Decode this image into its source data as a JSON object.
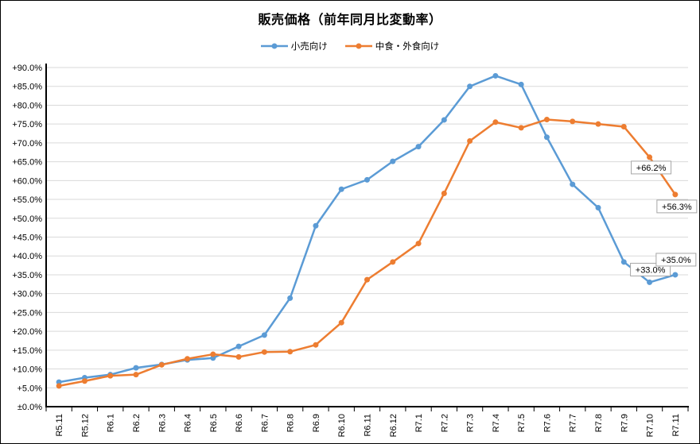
{
  "chart_data": {
    "type": "line",
    "title": "販売価格（前年同月比変動率）",
    "categories": [
      "R5.11",
      "R5.12",
      "R6.1",
      "R6.2",
      "R6.3",
      "R6.4",
      "R6.5",
      "R6.6",
      "R6.7",
      "R6.8",
      "R6.9",
      "R6.10",
      "R6.11",
      "R6.12",
      "R7.1",
      "R7.2",
      "R7.3",
      "R7.4",
      "R7.5",
      "R7.6",
      "R7.7",
      "R7.8",
      "R7.9",
      "R7.10",
      "R7.11"
    ],
    "series": [
      {
        "name": "小売向け",
        "color": "#5B9BD5",
        "values": [
          6.5,
          7.7,
          8.5,
          10.3,
          11.2,
          12.4,
          12.9,
          16.0,
          19.0,
          28.8,
          48.0,
          57.7,
          60.2,
          65.1,
          69.0,
          76.1,
          85.0,
          87.8,
          85.5,
          71.5,
          59.0,
          52.8,
          38.4,
          33.0,
          35.0
        ]
      },
      {
        "name": "中食・外食向け",
        "color": "#ED7D31",
        "values": [
          5.5,
          6.8,
          8.2,
          8.5,
          11.1,
          12.7,
          13.9,
          13.2,
          14.5,
          14.6,
          16.4,
          22.3,
          33.7,
          38.4,
          43.3,
          56.6,
          70.5,
          75.5,
          74.0,
          76.2,
          75.7,
          75.0,
          74.3,
          66.2,
          56.3
        ]
      }
    ],
    "ylim": [
      0,
      90
    ],
    "y_tick_step": 5,
    "y_tick_labels": [
      "±0.0%",
      "+5.0%",
      "+10.0%",
      "+15.0%",
      "+20.0%",
      "+25.0%",
      "+30.0%",
      "+35.0%",
      "+40.0%",
      "+45.0%",
      "+50.0%",
      "+55.0%",
      "+60.0%",
      "+65.0%",
      "+70.0%",
      "+75.0%",
      "+80.0%",
      "+85.0%",
      "+90.0%"
    ],
    "grid": true,
    "legend_position": "top",
    "annotations": [
      {
        "label": "+66.2%",
        "series": 1,
        "point": 23
      },
      {
        "label": "+56.3%",
        "series": 1,
        "point": 24
      },
      {
        "label": "+33.0%",
        "series": 0,
        "point": 23
      },
      {
        "label": "+35.0%",
        "series": 0,
        "point": 24
      }
    ]
  },
  "colors": {
    "grid": "#D9D9D9",
    "axis": "#000000",
    "annotation_border": "#A6A6A6",
    "annotation_fill": "#FFFFFF",
    "text": "#000000"
  }
}
